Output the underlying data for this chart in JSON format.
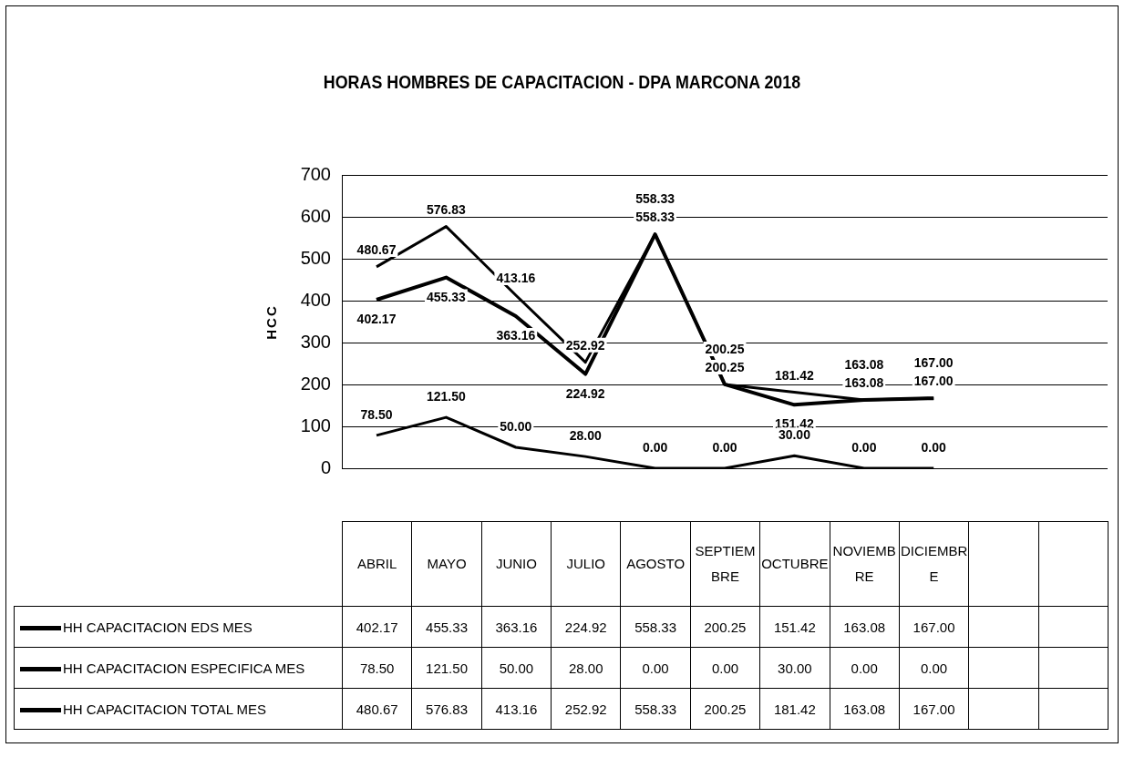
{
  "chart_data": {
    "type": "line",
    "title": "HORAS HOMBRES DE CAPACITACION - DPA MARCONA 2018",
    "ylabel": "HCC",
    "categories": [
      "ABRIL",
      "MAYO",
      "JUNIO",
      "JULIO",
      "AGOSTO",
      "SEPTIEMBRE",
      "OCTUBRE",
      "NOVIEMBRE",
      "DICIEMBRE",
      null,
      null
    ],
    "series": [
      {
        "name": "HH CAPACITACION EDS MES",
        "color": "#000000",
        "values": [
          402.17,
          455.33,
          363.16,
          224.92,
          558.33,
          200.25,
          151.42,
          163.08,
          167.0,
          null,
          null
        ],
        "value_labels": [
          "402.17",
          "455.33",
          "363.16",
          "224.92",
          "558.33",
          "200.25",
          "151.42",
          "163.08",
          "167.00",
          null,
          null
        ]
      },
      {
        "name": "HH CAPACITACION ESPECIFICA MES",
        "color": "#000000",
        "values": [
          78.5,
          121.5,
          50.0,
          28.0,
          0.0,
          0.0,
          30.0,
          0.0,
          0.0,
          null,
          null
        ],
        "value_labels": [
          "78.50",
          "121.50",
          "50.00",
          "28.00",
          "0.00",
          "0.00",
          "30.00",
          "0.00",
          "0.00",
          null,
          null
        ]
      },
      {
        "name": "HH CAPACITACION TOTAL MES",
        "color": "#000000",
        "values": [
          480.67,
          576.83,
          413.16,
          252.92,
          558.33,
          200.25,
          181.42,
          163.08,
          167.0,
          null,
          null
        ],
        "value_labels": [
          "480.67",
          "576.83",
          "413.16",
          "252.92",
          "558.33",
          "200.25",
          "181.42",
          "163.08",
          "167.00",
          null,
          null
        ]
      }
    ],
    "ylim": [
      0,
      700
    ],
    "yticks": [
      0,
      100,
      200,
      300,
      400,
      500,
      600,
      700
    ],
    "grid": "y",
    "legend": "bottom",
    "marker": "none",
    "line_style": "solid"
  }
}
